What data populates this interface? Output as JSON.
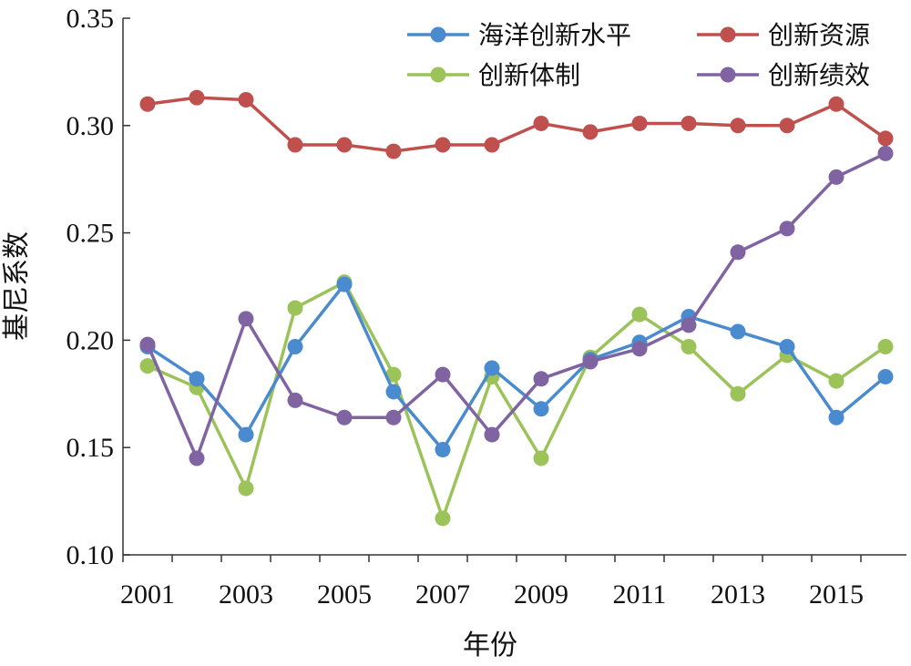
{
  "chart_data": {
    "type": "line",
    "xlabel": "年份",
    "ylabel": "基尼系数",
    "ylim": [
      0.1,
      0.35
    ],
    "yticks": [
      "0.10",
      "0.15",
      "0.20",
      "0.25",
      "0.30",
      "0.35"
    ],
    "xticks": [
      "2001",
      "2003",
      "2005",
      "2007",
      "2009",
      "2011",
      "2013",
      "2015"
    ],
    "x": [
      2001,
      2002,
      2003,
      2004,
      2005,
      2006,
      2007,
      2008,
      2009,
      2010,
      2011,
      2012,
      2013,
      2014,
      2015,
      2016
    ],
    "grid": false,
    "legend_position": "top-right",
    "series": [
      {
        "name": "海洋创新水平",
        "color": "#4a8bd0",
        "values": [
          0.197,
          0.182,
          0.156,
          0.197,
          0.226,
          0.176,
          0.149,
          0.187,
          0.168,
          0.191,
          0.199,
          0.211,
          0.204,
          0.197,
          0.164,
          0.183
        ]
      },
      {
        "name": "创新资源",
        "color": "#c0504d",
        "values": [
          0.31,
          0.313,
          0.312,
          0.291,
          0.291,
          0.288,
          0.291,
          0.291,
          0.301,
          0.297,
          0.301,
          0.301,
          0.3,
          0.3,
          0.31,
          0.294
        ]
      },
      {
        "name": "创新体制",
        "color": "#9bc35a",
        "values": [
          0.188,
          0.178,
          0.131,
          0.215,
          0.227,
          0.184,
          0.117,
          0.183,
          0.145,
          0.192,
          0.212,
          0.197,
          0.175,
          0.193,
          0.181,
          0.197
        ]
      },
      {
        "name": "创新绩效",
        "color": "#8064a2",
        "values": [
          0.198,
          0.145,
          0.21,
          0.172,
          0.164,
          0.164,
          0.184,
          0.156,
          0.182,
          0.19,
          0.196,
          0.207,
          0.241,
          0.252,
          0.276,
          0.287
        ]
      }
    ]
  }
}
